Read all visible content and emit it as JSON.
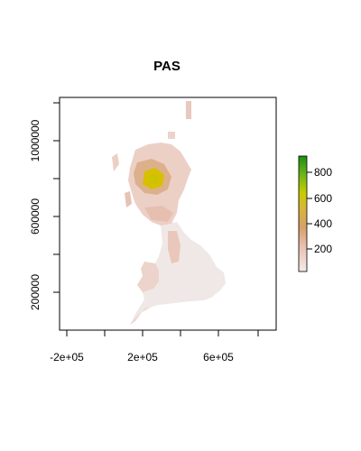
{
  "title": "PAS",
  "map": {
    "x_ticks": [
      "-2e+05",
      "2e+05",
      "6e+05"
    ],
    "y_ticks": [
      "200000",
      "600000",
      "1000000"
    ]
  },
  "legend": {
    "labels": [
      "200",
      "400",
      "600",
      "800"
    ],
    "colors": [
      "#f2e6e3",
      "#e8bfae",
      "#d8a06a",
      "#d6b23a",
      "#cfcc00",
      "#8dbf10",
      "#2e9b1a",
      "#108a12"
    ]
  },
  "colors": {
    "land_low": "#f0e9e6",
    "land_mid": "#efcfc4",
    "land_high": "#d5a97a",
    "peak": "#d8c000",
    "frame": "#000000"
  }
}
